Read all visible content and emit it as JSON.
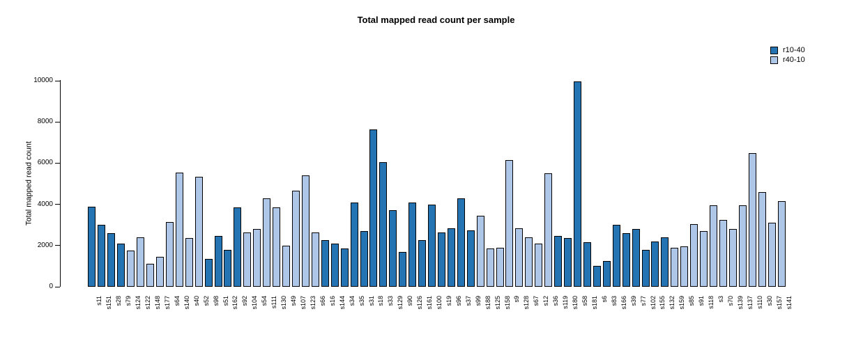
{
  "chart_data": {
    "type": "bar",
    "title": "Total mapped read count per sample",
    "xlabel": "",
    "ylabel": "Total mapped read count",
    "ylim": [
      0,
      10000
    ],
    "yticks": [
      0,
      2000,
      4000,
      6000,
      8000,
      10000
    ],
    "grid": false,
    "legend_position": "top-right",
    "series": [
      {
        "name": "r10-40",
        "color": "#2474b4"
      },
      {
        "name": "r40-10",
        "color": "#aec7e8"
      }
    ],
    "samples": [
      {
        "n": "s11",
        "v": 3900,
        "g": 0
      },
      {
        "n": "s151",
        "v": 3000,
        "g": 0
      },
      {
        "n": "s28",
        "v": 2600,
        "g": 0
      },
      {
        "n": "s79",
        "v": 2100,
        "g": 0
      },
      {
        "n": "s124",
        "v": 1750,
        "g": 1
      },
      {
        "n": "s122",
        "v": 2400,
        "g": 1
      },
      {
        "n": "s148",
        "v": 1100,
        "g": 1
      },
      {
        "n": "s177",
        "v": 1450,
        "g": 1
      },
      {
        "n": "s64",
        "v": 3150,
        "g": 1
      },
      {
        "n": "s140",
        "v": 5550,
        "g": 1
      },
      {
        "n": "s40",
        "v": 2350,
        "g": 1
      },
      {
        "n": "s52",
        "v": 5350,
        "g": 1
      },
      {
        "n": "s98",
        "v": 1350,
        "g": 0
      },
      {
        "n": "s51",
        "v": 2450,
        "g": 0
      },
      {
        "n": "s162",
        "v": 1800,
        "g": 0
      },
      {
        "n": "s92",
        "v": 3850,
        "g": 0
      },
      {
        "n": "s104",
        "v": 2650,
        "g": 1
      },
      {
        "n": "s54",
        "v": 2800,
        "g": 1
      },
      {
        "n": "s111",
        "v": 4300,
        "g": 1
      },
      {
        "n": "s130",
        "v": 3850,
        "g": 1
      },
      {
        "n": "s49",
        "v": 2000,
        "g": 1
      },
      {
        "n": "s107",
        "v": 4650,
        "g": 1
      },
      {
        "n": "s123",
        "v": 5400,
        "g": 1
      },
      {
        "n": "s66",
        "v": 2650,
        "g": 1
      },
      {
        "n": "s16",
        "v": 2250,
        "g": 0
      },
      {
        "n": "s144",
        "v": 2100,
        "g": 0
      },
      {
        "n": "s34",
        "v": 1850,
        "g": 0
      },
      {
        "n": "s35",
        "v": 4100,
        "g": 0
      },
      {
        "n": "s31",
        "v": 2700,
        "g": 0
      },
      {
        "n": "s18",
        "v": 7650,
        "g": 0
      },
      {
        "n": "s33",
        "v": 6050,
        "g": 0
      },
      {
        "n": "s129",
        "v": 3700,
        "g": 0
      },
      {
        "n": "s90",
        "v": 1700,
        "g": 0
      },
      {
        "n": "s126",
        "v": 4100,
        "g": 0
      },
      {
        "n": "s161",
        "v": 2250,
        "g": 0
      },
      {
        "n": "s100",
        "v": 4000,
        "g": 0
      },
      {
        "n": "s19",
        "v": 2650,
        "g": 0
      },
      {
        "n": "s96",
        "v": 2850,
        "g": 0
      },
      {
        "n": "s37",
        "v": 4300,
        "g": 0
      },
      {
        "n": "s99",
        "v": 2750,
        "g": 0
      },
      {
        "n": "s188",
        "v": 3450,
        "g": 1
      },
      {
        "n": "s125",
        "v": 1850,
        "g": 1
      },
      {
        "n": "s158",
        "v": 1900,
        "g": 1
      },
      {
        "n": "s9",
        "v": 6150,
        "g": 1
      },
      {
        "n": "s128",
        "v": 2850,
        "g": 1
      },
      {
        "n": "s67",
        "v": 2400,
        "g": 1
      },
      {
        "n": "s12",
        "v": 2100,
        "g": 1
      },
      {
        "n": "s36",
        "v": 5500,
        "g": 1
      },
      {
        "n": "s119",
        "v": 2450,
        "g": 0
      },
      {
        "n": "s180",
        "v": 2350,
        "g": 0
      },
      {
        "n": "s58",
        "v": 9950,
        "g": 0
      },
      {
        "n": "s181",
        "v": 2150,
        "g": 0
      },
      {
        "n": "s6",
        "v": 1000,
        "g": 0
      },
      {
        "n": "s83",
        "v": 1250,
        "g": 0
      },
      {
        "n": "s166",
        "v": 3000,
        "g": 0
      },
      {
        "n": "s39",
        "v": 2600,
        "g": 0
      },
      {
        "n": "s77",
        "v": 2800,
        "g": 0
      },
      {
        "n": "s102",
        "v": 1800,
        "g": 0
      },
      {
        "n": "s155",
        "v": 2200,
        "g": 0
      },
      {
        "n": "s132",
        "v": 2400,
        "g": 0
      },
      {
        "n": "s159",
        "v": 1900,
        "g": 1
      },
      {
        "n": "s85",
        "v": 1950,
        "g": 1
      },
      {
        "n": "s91",
        "v": 3050,
        "g": 1
      },
      {
        "n": "s118",
        "v": 2700,
        "g": 1
      },
      {
        "n": "s3",
        "v": 3950,
        "g": 1
      },
      {
        "n": "s70",
        "v": 3250,
        "g": 1
      },
      {
        "n": "s139",
        "v": 2800,
        "g": 1
      },
      {
        "n": "s137",
        "v": 3950,
        "g": 1
      },
      {
        "n": "s110",
        "v": 6500,
        "g": 1
      },
      {
        "n": "s30",
        "v": 4600,
        "g": 1
      },
      {
        "n": "s157",
        "v": 3100,
        "g": 1
      },
      {
        "n": "s141",
        "v": 4150,
        "g": 1
      }
    ]
  }
}
